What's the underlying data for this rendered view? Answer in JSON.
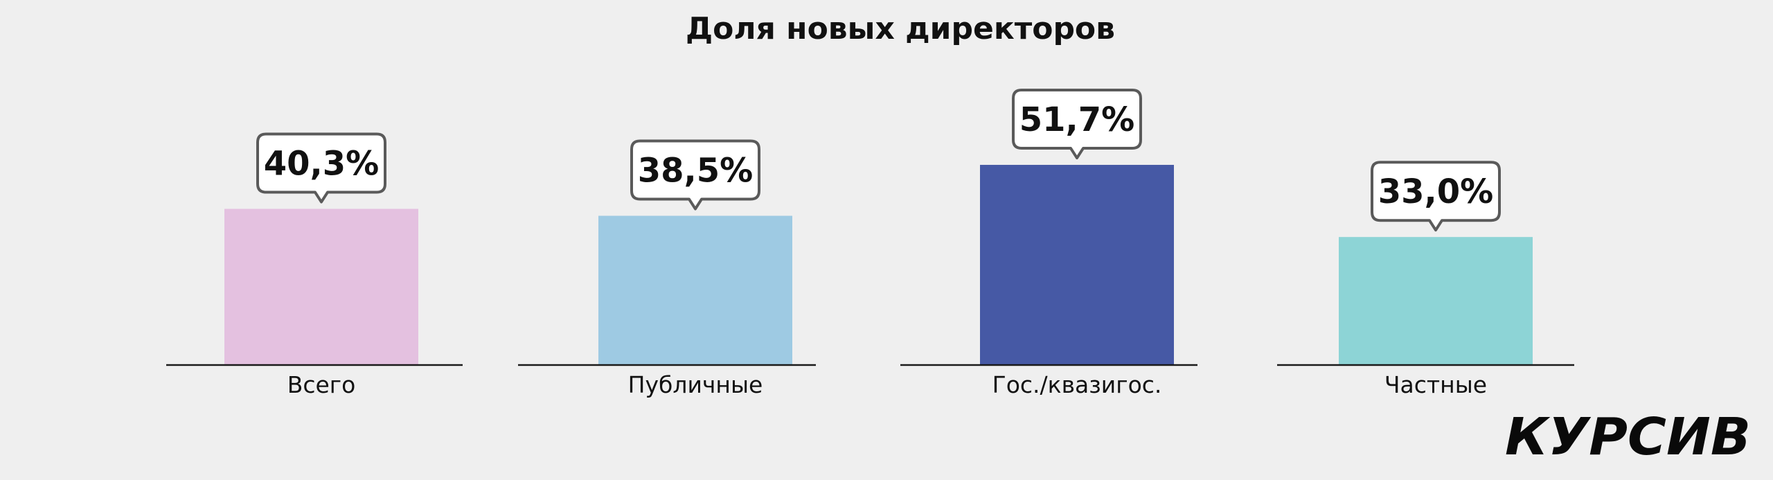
{
  "chart_data": {
    "type": "bar",
    "title": "Доля новых директоров",
    "categories": [
      "Всего",
      "Публичные",
      "Гос./квазигос.",
      "Частные"
    ],
    "values": [
      40.3,
      38.5,
      51.7,
      33.0
    ],
    "value_labels": [
      "40,3%",
      "38,5%",
      "51,7%",
      "33,0%"
    ],
    "colors": [
      "#e4c1e0",
      "#9ecae3",
      "#4659a5",
      "#8dd4d6"
    ],
    "ylim": [
      0,
      100
    ],
    "grid": false,
    "legend": "none"
  },
  "branding": {
    "logo": "КУРСИВ"
  }
}
